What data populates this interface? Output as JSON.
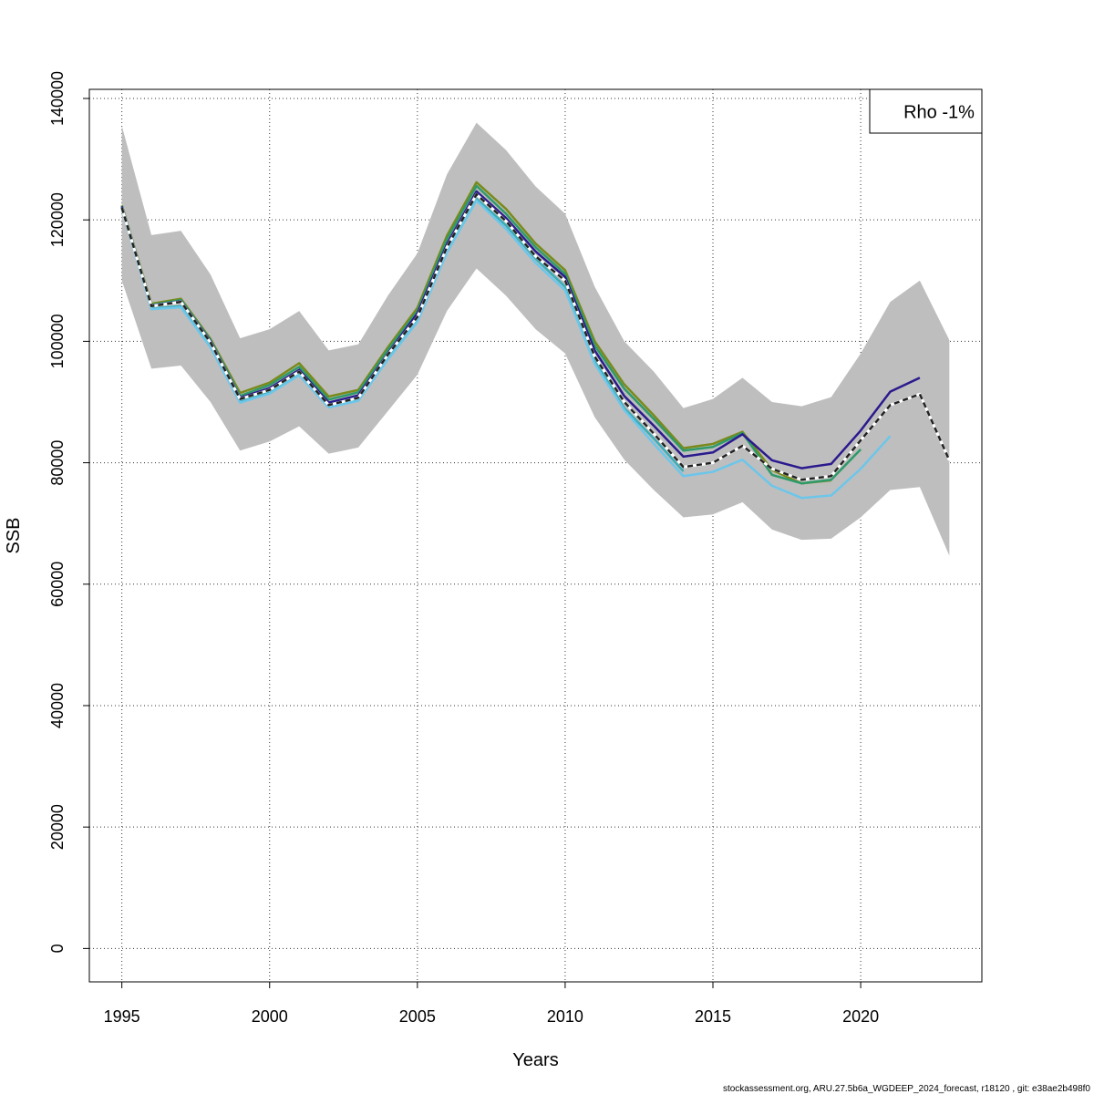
{
  "chart_data": {
    "type": "line",
    "xlabel": "Years",
    "ylabel": "SSB",
    "xlim": [
      1993.9,
      2024.1
    ],
    "ylim": [
      -5500,
      141500
    ],
    "x_ticks": [
      1995,
      2000,
      2005,
      2010,
      2015,
      2020
    ],
    "y_ticks": [
      0,
      20000,
      40000,
      60000,
      80000,
      100000,
      120000,
      140000
    ],
    "grid": true,
    "legend": {
      "position": "top-right",
      "text": "Rho -1%"
    },
    "confidence_band": {
      "x": [
        1995,
        1996,
        1997,
        1998,
        1999,
        2000,
        2001,
        2002,
        2003,
        2004,
        2005,
        2006,
        2007,
        2008,
        2009,
        2010,
        2011,
        2012,
        2013,
        2014,
        2015,
        2016,
        2017,
        2018,
        2019,
        2020,
        2021,
        2022,
        2023
      ],
      "lower": [
        110000,
        95500,
        96000,
        90000,
        82000,
        83500,
        86000,
        81500,
        82500,
        88500,
        94500,
        105000,
        112000,
        107500,
        102000,
        98000,
        87500,
        80500,
        75500,
        71000,
        71500,
        73500,
        69000,
        67300,
        67500,
        71000,
        75500,
        76000,
        64700
      ],
      "upper": [
        135500,
        117500,
        118200,
        111000,
        100500,
        102000,
        105000,
        98500,
        99500,
        107500,
        114500,
        127500,
        136000,
        131500,
        125500,
        121000,
        109000,
        100000,
        95000,
        89000,
        90500,
        94000,
        90000,
        89300,
        90800,
        98000,
        106500,
        110000,
        100200
      ]
    },
    "series": [
      {
        "color": "#222222",
        "dashed": true,
        "x": [
          1995,
          1996,
          1997,
          1998,
          1999,
          2000,
          2001,
          2002,
          2003,
          2004,
          2005,
          2006,
          2007,
          2008,
          2009,
          2010,
          2011,
          2012,
          2013,
          2014,
          2015,
          2016,
          2017,
          2018,
          2019,
          2020,
          2021,
          2022,
          2023
        ],
        "values": [
          122000,
          105800,
          106500,
          99800,
          90500,
          92000,
          95000,
          89500,
          90700,
          97800,
          104000,
          115500,
          124200,
          119800,
          114000,
          110000,
          97500,
          90000,
          84800,
          79300,
          80000,
          82800,
          79000,
          77200,
          77800,
          83700,
          89500,
          91300,
          80400
        ]
      },
      {
        "color": "#2a1a8e",
        "dashed": false,
        "x": [
          1995,
          1996,
          1997,
          1998,
          1999,
          2000,
          2001,
          2002,
          2003,
          2004,
          2005,
          2006,
          2007,
          2008,
          2009,
          2010,
          2011,
          2012,
          2013,
          2014,
          2015,
          2016,
          2017,
          2018,
          2019,
          2020,
          2021,
          2022
        ],
        "values": [
          122200,
          105900,
          106600,
          100000,
          90700,
          92300,
          95300,
          89900,
          91100,
          98000,
          104600,
          116000,
          124700,
          120300,
          114800,
          110600,
          98500,
          91000,
          86100,
          81000,
          81700,
          84700,
          80400,
          79100,
          79800,
          85300,
          91700,
          94000
        ]
      },
      {
        "color": "#2e9a6a",
        "dashed": false,
        "x": [
          1995,
          1996,
          1997,
          1998,
          1999,
          2000,
          2001,
          2002,
          2003,
          2004,
          2005,
          2006,
          2007,
          2008,
          2009,
          2010,
          2011,
          2012,
          2013,
          2014,
          2015,
          2016,
          2017,
          2018,
          2019,
          2020
        ],
        "values": [
          122300,
          106000,
          106800,
          100200,
          91000,
          92800,
          95800,
          90400,
          91600,
          98600,
          105000,
          116800,
          125600,
          121000,
          115500,
          111100,
          99300,
          92200,
          87200,
          82000,
          82600,
          84900,
          78000,
          76600,
          77200,
          82200
        ]
      },
      {
        "color": "#7a8a1a",
        "dashed": false,
        "x": [
          1995,
          1996,
          1997,
          1998,
          1999,
          2000,
          2001,
          2002,
          2003,
          2004,
          2005,
          2006,
          2007,
          2008,
          2009,
          2010,
          2011,
          2012,
          2013,
          2014,
          2015,
          2016,
          2017,
          2018,
          2019
        ],
        "values": [
          122400,
          106200,
          107000,
          100400,
          91500,
          93200,
          96400,
          90900,
          92000,
          99000,
          105500,
          117400,
          126200,
          121800,
          116100,
          111700,
          100000,
          92900,
          87800,
          82400,
          83100,
          85100,
          78800,
          76600,
          77100
        ]
      },
      {
        "color": "#6cc6ea",
        "dashed": false,
        "x": [
          1995,
          1996,
          1997,
          1998,
          1999,
          2000,
          2001,
          2002,
          2003,
          2004,
          2005,
          2006,
          2007,
          2008,
          2009,
          2010,
          2011,
          2012,
          2013,
          2014,
          2015,
          2016,
          2017,
          2018,
          2019,
          2020,
          2021
        ],
        "values": [
          121800,
          105300,
          105600,
          99000,
          89900,
          91400,
          94400,
          89100,
          90200,
          97000,
          103200,
          114600,
          123200,
          118500,
          112900,
          108400,
          96300,
          88700,
          83100,
          77800,
          78500,
          80500,
          76200,
          74200,
          74600,
          79000,
          84400
        ]
      },
      {
        "color": "#3aaeb6",
        "dashed": false,
        "x": [
          1995,
          1996,
          1997,
          1998,
          1999,
          2000,
          2001,
          2002,
          2003,
          2004,
          2005,
          2006,
          2007,
          2008,
          2009,
          2010,
          2011,
          2012,
          2013,
          2014
        ],
        "values": [
          121900,
          105400,
          105800,
          99300,
          90100,
          91700,
          94700,
          89400,
          90400,
          97400,
          103600,
          115100,
          123500,
          119100,
          113600,
          109000,
          97000,
          89000,
          84000,
          78600
        ]
      }
    ]
  },
  "footer": "stockassessment.org, ARU.27.5b6a_WGDEEP_2024_forecast, r18120 , git: e38ae2b498f0"
}
